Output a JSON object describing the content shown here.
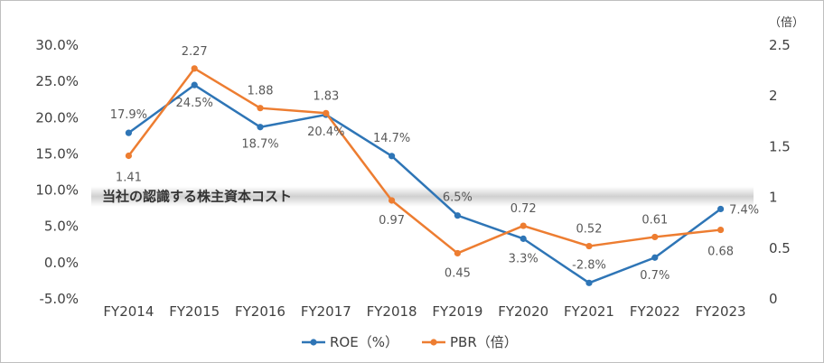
{
  "chart_data": {
    "type": "line",
    "categories": [
      "FY2014",
      "FY2015",
      "FY2016",
      "FY2017",
      "FY2018",
      "FY2019",
      "FY2020",
      "FY2021",
      "FY2022",
      "FY2023"
    ],
    "series": [
      {
        "name": "ROE（%）",
        "axis": "left",
        "color": "#2E75B6",
        "values": [
          17.9,
          24.5,
          18.7,
          20.4,
          14.7,
          6.5,
          3.3,
          -2.8,
          0.7,
          7.4
        ],
        "labels": [
          "17.9%",
          "24.5%",
          "18.7%",
          "20.4%",
          "14.7%",
          "6.5%",
          "3.3%",
          "-2.8%",
          "0.7%",
          "7.4%"
        ]
      },
      {
        "name": "PBR（倍）",
        "axis": "right",
        "color": "#ED7D31",
        "values": [
          1.41,
          2.27,
          1.88,
          1.83,
          0.97,
          0.45,
          0.72,
          0.52,
          0.61,
          0.68
        ],
        "labels": [
          "1.41",
          "2.27",
          "1.88",
          "1.83",
          "0.97",
          "0.45",
          "0.72",
          "0.52",
          "0.61",
          "0.68"
        ]
      }
    ],
    "y_left": {
      "range": [
        -5,
        30
      ],
      "ticks": [
        -5,
        0,
        5,
        10,
        15,
        20,
        25,
        30
      ],
      "tick_labels": [
        "-5.0%",
        "0.0%",
        "5.0%",
        "10.0%",
        "15.0%",
        "20.0%",
        "25.0%",
        "30.0%"
      ]
    },
    "y_right": {
      "range": [
        0,
        2.5
      ],
      "ticks": [
        0,
        0.5,
        1,
        1.5,
        2,
        2.5
      ],
      "tick_labels": [
        "0",
        "0.5",
        "1",
        "1.5",
        "2",
        "2.5"
      ],
      "unit_label": "（倍）"
    },
    "annotation_band": {
      "label": "当社の認識する株主資本コスト",
      "y_range": [
        8,
        10
      ],
      "axis": "left"
    },
    "legend": {
      "position": "bottom"
    },
    "grid": false
  }
}
